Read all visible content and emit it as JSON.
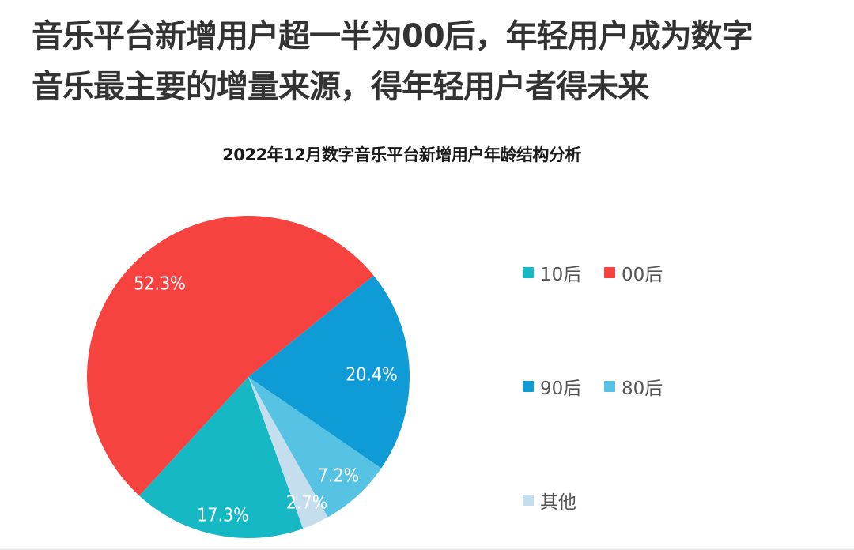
{
  "headline": {
    "line1": "音乐平台新增用户超一半为00后，年轻用户成为数字",
    "line2": "音乐最主要的增量来源，得年轻用户者得未来"
  },
  "chart_data": {
    "type": "pie",
    "title": "2022年12月数字音乐平台新增用户年龄结构分析",
    "start_angle_deg": -39,
    "direction": "clockwise",
    "slices": [
      {
        "name": "90后",
        "value": 20.4,
        "label": "20.4%",
        "color": "#0E9BD6"
      },
      {
        "name": "80后",
        "value": 7.2,
        "label": "7.2%",
        "color": "#56C3E4"
      },
      {
        "name": "其他",
        "value": 2.7,
        "label": "2.7%",
        "color": "#C4DEEE"
      },
      {
        "name": "10后",
        "value": 17.3,
        "label": "17.3%",
        "color": "#16B8C4"
      },
      {
        "name": "00后",
        "value": 52.3,
        "label": "52.3%",
        "color": "#F6433F"
      }
    ],
    "legend": {
      "position": "right",
      "items": [
        {
          "name": "10后",
          "color": "#16B8C4"
        },
        {
          "name": "00后",
          "color": "#F6433F"
        },
        {
          "name": "90后",
          "color": "#0E9BD6"
        },
        {
          "name": "80后",
          "color": "#56C3E4"
        },
        {
          "name": "其他",
          "color": "#C4DEEE"
        }
      ]
    }
  }
}
